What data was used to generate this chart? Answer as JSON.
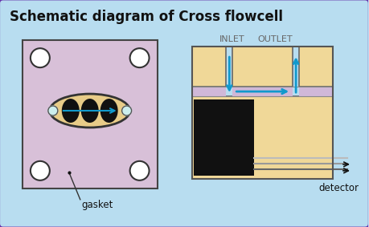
{
  "title": "Schematic diagram of Cross flowcell",
  "bg_color": "#b8ddf0",
  "border_color": "#6633aa",
  "gasket_plate_color": "#d8c0d8",
  "gasket_plate_border": "#555555",
  "hole_color": "#ffffff",
  "ellipse_outer_color": "#e8cc88",
  "beam_arrow_color": "#1199cc",
  "cell_body_color": "#f0d898",
  "gasket_center_color": "#d0b8d8",
  "black_element_color": "#111111",
  "fiber_colors": [
    "#666666",
    "#999999",
    "#bbbbbb"
  ],
  "arrow_color": "#1199cc",
  "label_gasket": "gasket",
  "label_inlet": "INLET",
  "label_outlet": "OUTLET",
  "label_detector": "detector",
  "title_fontsize": 12,
  "label_fontsize": 8.5
}
